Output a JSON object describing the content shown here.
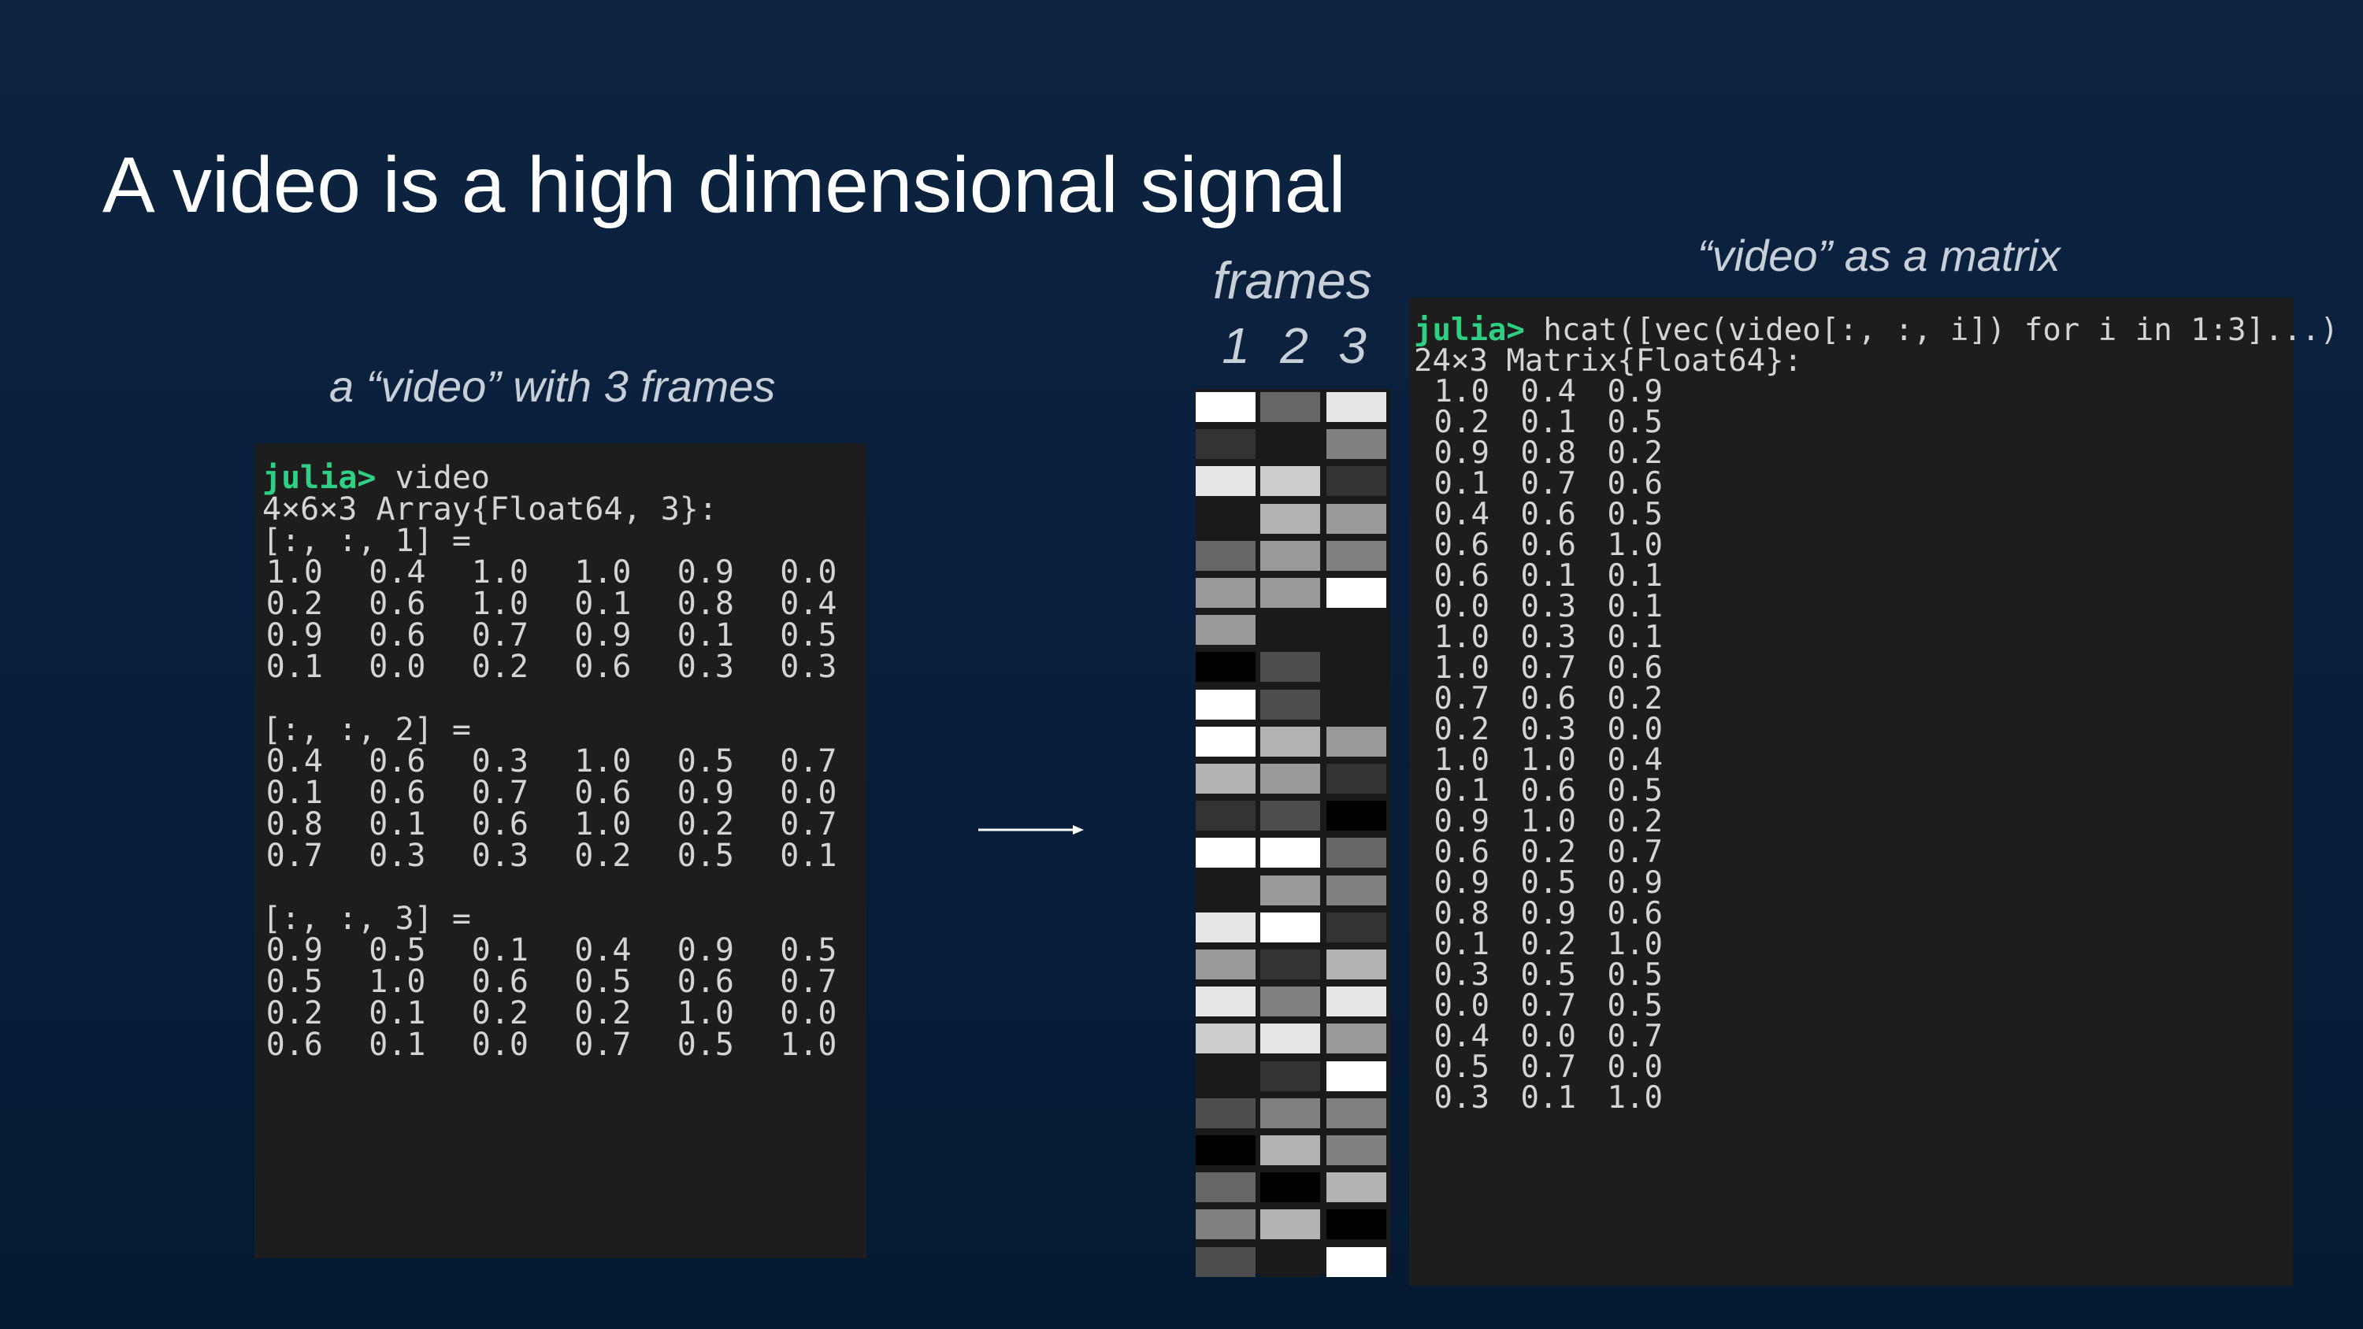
{
  "slide": {
    "title": "A video is a high dimensional signal",
    "caption_left": "a “video” with 3 frames",
    "caption_frames": "frames",
    "frame_numbers": [
      "1",
      "2",
      "3"
    ],
    "caption_matrix": "“video” as a matrix"
  },
  "left_terminal": {
    "prompt": "julia>",
    "command": " video",
    "type_line": "4×6×3 Array{Float64, 3}:",
    "slices": [
      {
        "header": "[:, :, 1] =",
        "rows": [
          [
            "1.0",
            "0.4",
            "1.0",
            "1.0",
            "0.9",
            "0.0"
          ],
          [
            "0.2",
            "0.6",
            "1.0",
            "0.1",
            "0.8",
            "0.4"
          ],
          [
            "0.9",
            "0.6",
            "0.7",
            "0.9",
            "0.1",
            "0.5"
          ],
          [
            "0.1",
            "0.0",
            "0.2",
            "0.6",
            "0.3",
            "0.3"
          ]
        ]
      },
      {
        "header": "[:, :, 2] =",
        "rows": [
          [
            "0.4",
            "0.6",
            "0.3",
            "1.0",
            "0.5",
            "0.7"
          ],
          [
            "0.1",
            "0.6",
            "0.7",
            "0.6",
            "0.9",
            "0.0"
          ],
          [
            "0.8",
            "0.1",
            "0.6",
            "1.0",
            "0.2",
            "0.7"
          ],
          [
            "0.7",
            "0.3",
            "0.3",
            "0.2",
            "0.5",
            "0.1"
          ]
        ]
      },
      {
        "header": "[:, :, 3] =",
        "rows": [
          [
            "0.9",
            "0.5",
            "0.1",
            "0.4",
            "0.9",
            "0.5"
          ],
          [
            "0.5",
            "1.0",
            "0.6",
            "0.5",
            "0.6",
            "0.7"
          ],
          [
            "0.2",
            "0.1",
            "0.2",
            "0.2",
            "1.0",
            "0.0"
          ],
          [
            "0.6",
            "0.1",
            "0.0",
            "0.7",
            "0.5",
            "1.0"
          ]
        ]
      }
    ]
  },
  "right_terminal": {
    "prompt": "julia>",
    "command": " hcat([vec(video[:, :, i]) for i in 1:3]...)",
    "type_line": "24×3 Matrix{Float64}:",
    "rows": [
      [
        "1.0",
        "0.4",
        "0.9"
      ],
      [
        "0.2",
        "0.1",
        "0.5"
      ],
      [
        "0.9",
        "0.8",
        "0.2"
      ],
      [
        "0.1",
        "0.7",
        "0.6"
      ],
      [
        "0.4",
        "0.6",
        "0.5"
      ],
      [
        "0.6",
        "0.6",
        "1.0"
      ],
      [
        "0.6",
        "0.1",
        "0.1"
      ],
      [
        "0.0",
        "0.3",
        "0.1"
      ],
      [
        "1.0",
        "0.3",
        "0.1"
      ],
      [
        "1.0",
        "0.7",
        "0.6"
      ],
      [
        "0.7",
        "0.6",
        "0.2"
      ],
      [
        "0.2",
        "0.3",
        "0.0"
      ],
      [
        "1.0",
        "1.0",
        "0.4"
      ],
      [
        "0.1",
        "0.6",
        "0.5"
      ],
      [
        "0.9",
        "1.0",
        "0.2"
      ],
      [
        "0.6",
        "0.2",
        "0.7"
      ],
      [
        "0.9",
        "0.5",
        "0.9"
      ],
      [
        "0.8",
        "0.9",
        "0.6"
      ],
      [
        "0.1",
        "0.2",
        "1.0"
      ],
      [
        "0.3",
        "0.5",
        "0.5"
      ],
      [
        "0.0",
        "0.7",
        "0.5"
      ],
      [
        "0.4",
        "0.0",
        "0.7"
      ],
      [
        "0.5",
        "0.7",
        "0.0"
      ],
      [
        "0.3",
        "0.1",
        "1.0"
      ]
    ]
  },
  "heatmap": {
    "intensities": [
      [
        1.0,
        0.4,
        0.9
      ],
      [
        0.2,
        0.1,
        0.5
      ],
      [
        0.9,
        0.8,
        0.2
      ],
      [
        0.1,
        0.7,
        0.6
      ],
      [
        0.4,
        0.6,
        0.5
      ],
      [
        0.6,
        0.6,
        1.0
      ],
      [
        0.6,
        0.1,
        0.1
      ],
      [
        0.0,
        0.3,
        0.1
      ],
      [
        1.0,
        0.3,
        0.1
      ],
      [
        1.0,
        0.7,
        0.6
      ],
      [
        0.7,
        0.6,
        0.2
      ],
      [
        0.2,
        0.3,
        0.0
      ],
      [
        1.0,
        1.0,
        0.4
      ],
      [
        0.1,
        0.6,
        0.5
      ],
      [
        0.9,
        1.0,
        0.2
      ],
      [
        0.6,
        0.2,
        0.7
      ],
      [
        0.9,
        0.5,
        0.9
      ],
      [
        0.8,
        0.9,
        0.6
      ],
      [
        0.1,
        0.2,
        1.0
      ],
      [
        0.3,
        0.5,
        0.5
      ],
      [
        0.0,
        0.7,
        0.5
      ],
      [
        0.4,
        0.0,
        0.7
      ],
      [
        0.5,
        0.7,
        0.0
      ],
      [
        0.3,
        0.1,
        1.0
      ]
    ]
  },
  "colors": {
    "prompt": "#2fcf84",
    "terminal_bg": "#1d1d1d",
    "text": "#d4d4d4"
  }
}
